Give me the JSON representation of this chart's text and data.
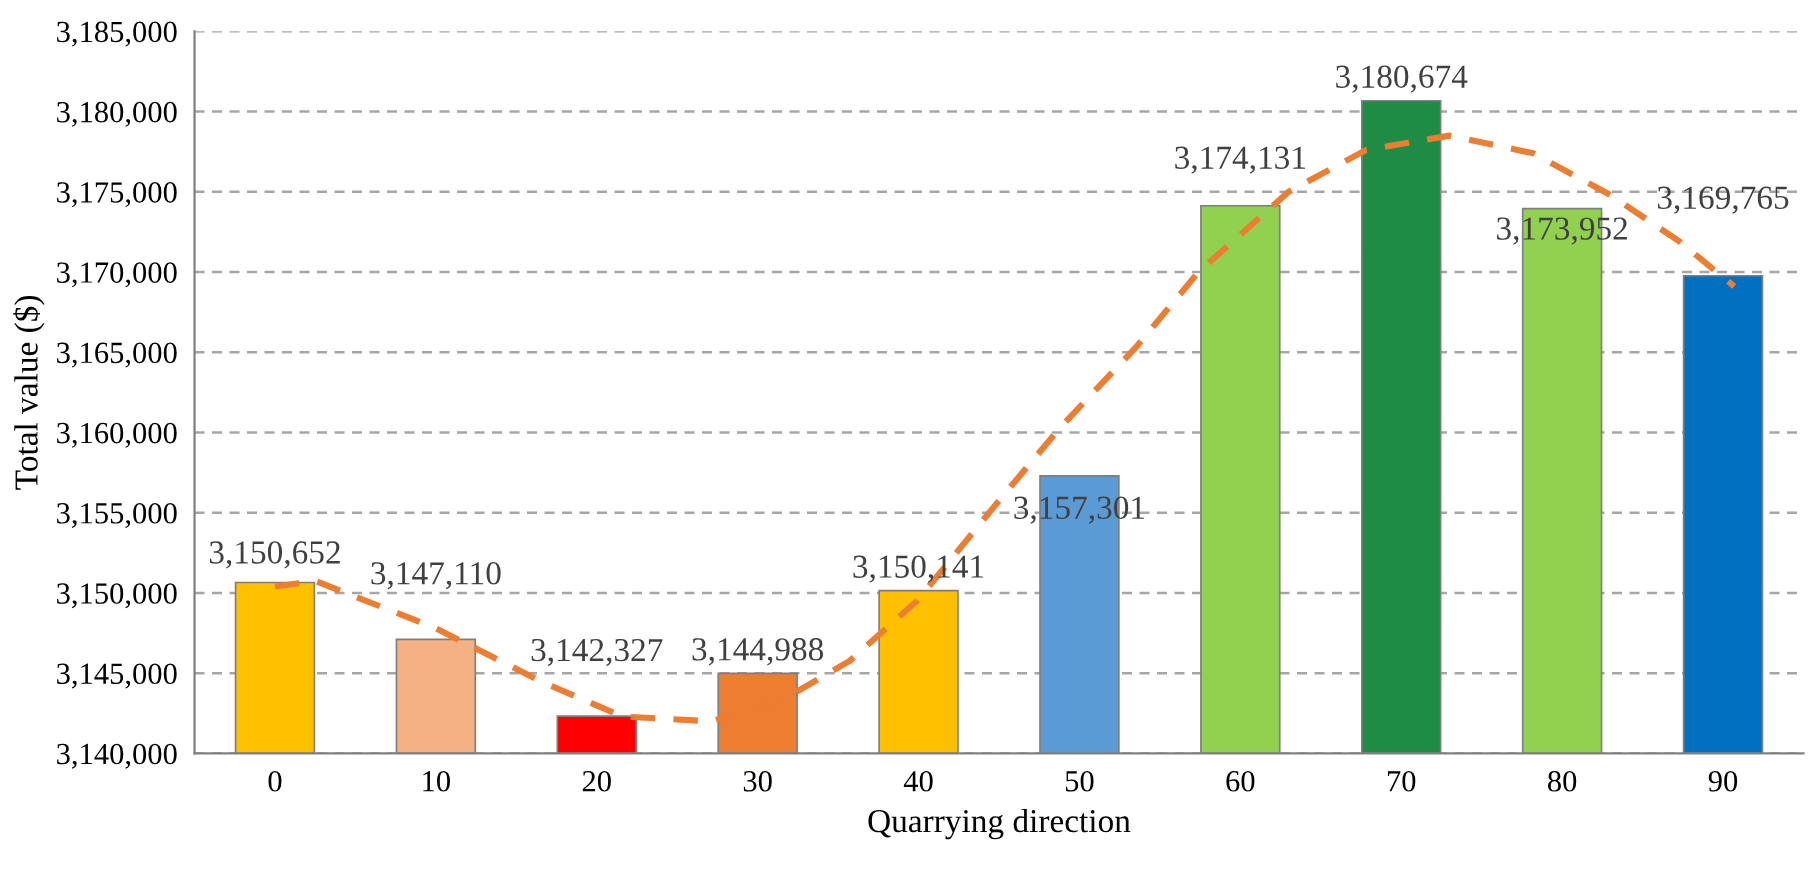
{
  "chart_data": {
    "type": "bar",
    "xlabel": "Quarrying direction",
    "ylabel": "Total value ($)",
    "x": [
      0,
      10,
      20,
      30,
      40,
      50,
      60,
      70,
      80,
      90
    ],
    "xlim": [
      -5,
      95
    ],
    "xticks": [
      0,
      10,
      20,
      30,
      40,
      50,
      60,
      70,
      80,
      90
    ],
    "ylim": [
      3140000,
      3185000
    ],
    "yticks": [
      {
        "value": 3140000,
        "label": "3,140,000"
      },
      {
        "value": 3145000,
        "label": "3,145,000"
      },
      {
        "value": 3150000,
        "label": "3,150,000"
      },
      {
        "value": 3155000,
        "label": "3,155,000"
      },
      {
        "value": 3160000,
        "label": "3,160,000"
      },
      {
        "value": 3165000,
        "label": "3,165,000"
      },
      {
        "value": 3170000,
        "label": "3,170,000"
      },
      {
        "value": 3175000,
        "label": "3,175,000"
      },
      {
        "value": 3180000,
        "label": "3,180,000"
      },
      {
        "value": 3185000,
        "label": "3,185,000"
      }
    ],
    "grid": "y",
    "legend": false,
    "series": [
      {
        "values": [
          3150652,
          3147110,
          3142327,
          3144988,
          3150141,
          3157301,
          3174131,
          3180674,
          3173952,
          3169765
        ],
        "colors": [
          "#ffc000",
          "#f4b183",
          "#ff0000",
          "#ed7d31",
          "#ffc000",
          "#5b9bd5",
          "#92d050",
          "#1e8c45",
          "#92d050",
          "#0070c0"
        ],
        "value_labels": [
          "3,150,652",
          "3,147,110",
          "3,142,327",
          "3,144,988",
          "3,150,141",
          "3,157,301",
          "3,174,131",
          "3,180,674",
          "3,173,952",
          "3,169,765"
        ]
      },
      {
        "type": "line",
        "color": "#ed7d31",
        "line_style": "dashed",
        "marker": "none",
        "x": [
          0,
          2.5,
          10,
          16.5,
          21.6,
          27.1,
          31.4,
          35.7,
          39.9,
          45,
          48.8,
          53.5,
          57.4,
          63,
          67.8,
          73,
          78.2,
          83,
          87.3,
          90.7
        ],
        "values": [
          3150400,
          3150750,
          3147800,
          3144500,
          3142300,
          3142000,
          3143250,
          3145750,
          3149500,
          3155750,
          3160300,
          3165300,
          3170000,
          3175000,
          3177600,
          3178500,
          3177400,
          3174800,
          3171900,
          3169100
        ]
      }
    ]
  }
}
